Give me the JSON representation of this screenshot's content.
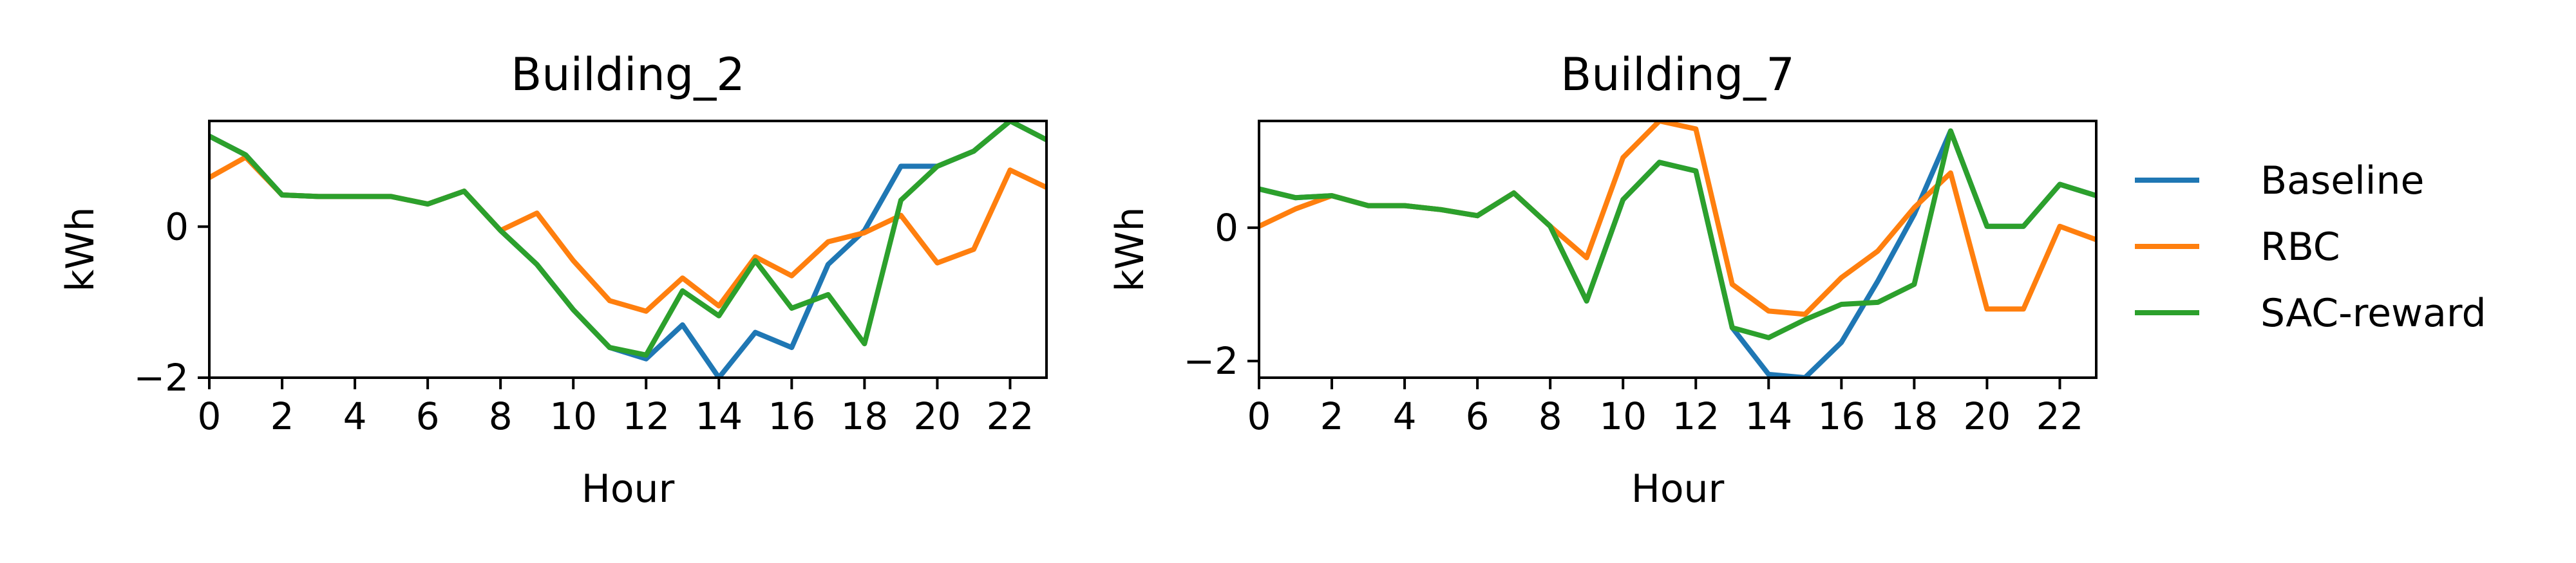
{
  "chart_data": [
    {
      "type": "line",
      "title": "Building_2",
      "xlabel": "Hour",
      "ylabel": "kWh",
      "xlim": [
        0,
        23
      ],
      "ylim": [
        -2,
        1.4
      ],
      "xticks": [
        0,
        2,
        4,
        6,
        8,
        10,
        12,
        14,
        16,
        18,
        20,
        22
      ],
      "yticks": [
        0,
        -2
      ],
      "ytick_labels": [
        "0",
        "−2"
      ],
      "grid": false,
      "x": [
        0,
        1,
        2,
        3,
        4,
        5,
        6,
        7,
        8,
        9,
        10,
        11,
        12,
        13,
        14,
        15,
        16,
        17,
        18,
        19,
        20,
        21,
        22,
        23
      ],
      "series": [
        {
          "name": "Baseline",
          "color": "#1f77b4",
          "values": [
            1.2,
            0.95,
            0.42,
            0.4,
            0.4,
            0.4,
            0.3,
            0.47,
            -0.05,
            -0.5,
            -1.1,
            -1.6,
            -1.75,
            -1.3,
            -2.0,
            -1.4,
            -1.6,
            -0.5,
            -0.05,
            0.8,
            0.8,
            1.0,
            1.4,
            1.15
          ]
        },
        {
          "name": "RBC",
          "color": "#ff7f0e",
          "values": [
            0.65,
            0.92,
            0.42,
            0.4,
            0.4,
            0.4,
            0.3,
            0.47,
            -0.05,
            0.18,
            -0.45,
            -0.98,
            -1.12,
            -0.68,
            -1.05,
            -0.4,
            -0.65,
            -0.2,
            -0.08,
            0.15,
            -0.48,
            -0.3,
            0.75,
            0.52
          ]
        },
        {
          "name": "SAC-reward",
          "color": "#2ca02c",
          "values": [
            1.2,
            0.95,
            0.42,
            0.4,
            0.4,
            0.4,
            0.3,
            0.47,
            -0.05,
            -0.5,
            -1.1,
            -1.6,
            -1.7,
            -0.85,
            -1.18,
            -0.45,
            -1.08,
            -0.9,
            -1.55,
            0.35,
            0.8,
            1.0,
            1.4,
            1.15
          ]
        }
      ]
    },
    {
      "type": "line",
      "title": "Building_7",
      "xlabel": "Hour",
      "ylabel": "kWh",
      "xlim": [
        0,
        23
      ],
      "ylim": [
        -2.25,
        1.6
      ],
      "xticks": [
        0,
        2,
        4,
        6,
        8,
        10,
        12,
        14,
        16,
        18,
        20,
        22
      ],
      "yticks": [
        0,
        -2
      ],
      "ytick_labels": [
        "0",
        "−2"
      ],
      "grid": false,
      "x": [
        0,
        1,
        2,
        3,
        4,
        5,
        6,
        7,
        8,
        9,
        10,
        11,
        12,
        13,
        14,
        15,
        16,
        17,
        18,
        19,
        20,
        21,
        22,
        23
      ],
      "series": [
        {
          "name": "Baseline",
          "color": "#1f77b4",
          "values": [
            0.58,
            0.45,
            0.48,
            0.33,
            0.33,
            0.27,
            0.18,
            0.52,
            0.02,
            -1.1,
            0.42,
            0.98,
            0.85,
            -1.5,
            -2.2,
            -2.25,
            -1.72,
            -0.8,
            0.2,
            1.45,
            0.02,
            0.02,
            0.65,
            0.48
          ]
        },
        {
          "name": "RBC",
          "color": "#ff7f0e",
          "values": [
            0.02,
            0.28,
            0.48,
            0.33,
            0.33,
            0.27,
            0.18,
            0.52,
            0.02,
            -0.45,
            1.05,
            1.6,
            1.48,
            -0.85,
            -1.25,
            -1.3,
            -0.75,
            -0.35,
            0.3,
            0.82,
            -1.22,
            -1.22,
            0.02,
            -0.18
          ]
        },
        {
          "name": "SAC-reward",
          "color": "#2ca02c",
          "values": [
            0.58,
            0.45,
            0.48,
            0.33,
            0.33,
            0.27,
            0.18,
            0.52,
            0.02,
            -1.1,
            0.42,
            0.98,
            0.85,
            -1.5,
            -1.65,
            -1.38,
            -1.15,
            -1.12,
            -0.85,
            1.45,
            0.02,
            0.02,
            0.65,
            0.48
          ]
        }
      ]
    }
  ],
  "legend": {
    "placement": "right",
    "entries": [
      {
        "label": "Baseline",
        "color": "#1f77b4"
      },
      {
        "label": "RBC",
        "color": "#ff7f0e"
      },
      {
        "label": "SAC-reward",
        "color": "#2ca02c"
      }
    ]
  }
}
